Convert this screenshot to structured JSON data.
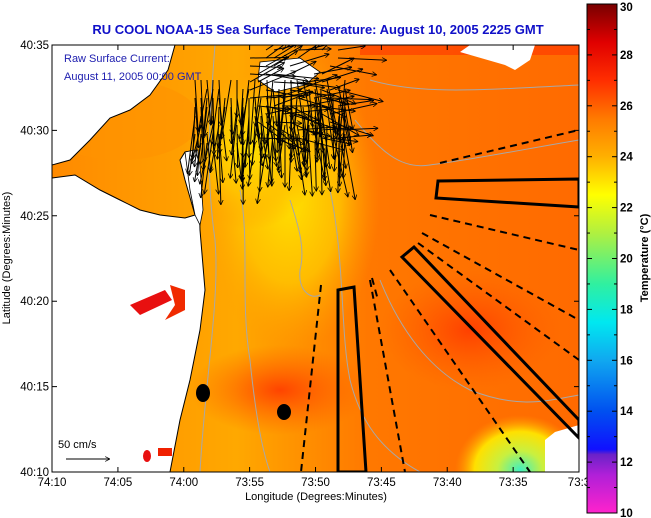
{
  "figure": {
    "title": "RU COOL  NOAA-15  Sea Surface Temperature:  August 10, 2005 2225 GMT",
    "annotation_line1": "Raw Surface Current:",
    "annotation_line2": "August 11, 2005 00:00 GMT",
    "scale_label": "50 cm/s",
    "colors": {
      "title": "#1010c8",
      "annotation": "#2020b0",
      "land": "#ffffff",
      "coastline": "#000000",
      "isobath": "#a0a0a0",
      "vectors": "#000000"
    }
  },
  "chart_data": {
    "type": "heatmap",
    "title": "RU COOL  NOAA-15  Sea Surface Temperature:  August 10, 2005 2225 GMT",
    "xlabel": "Longitude (Degrees:Minutes)",
    "ylabel": "Latitude (Degrees:Minutes)",
    "x_ticks": [
      "74:10",
      "74:05",
      "74:00",
      "73:55",
      "73:50",
      "73:45",
      "73:40",
      "73:35",
      "73:3"
    ],
    "x_tick_values": [
      -74.1667,
      -74.0833,
      -74.0,
      -73.9167,
      -73.8333,
      -73.75,
      -73.6667,
      -73.5833,
      -73.5
    ],
    "y_ticks": [
      "40:35",
      "40:30",
      "40:25",
      "40:20",
      "40:15",
      "40:10"
    ],
    "y_tick_values": [
      40.5833,
      40.5,
      40.4167,
      40.3333,
      40.25,
      40.1667
    ],
    "xlim": [
      -74.1667,
      -73.5
    ],
    "ylim": [
      40.1667,
      40.5833
    ],
    "colorbar": {
      "label": "Temperature (°C)",
      "range": [
        10,
        30
      ],
      "ticks": [
        "30",
        "28",
        "26",
        "24",
        "22",
        "20",
        "18",
        "16",
        "14",
        "12",
        "10"
      ],
      "tick_values": [
        30,
        28,
        26,
        24,
        22,
        20,
        18,
        16,
        14,
        12,
        10
      ],
      "stops": [
        {
          "value": 10,
          "color": "#ff22cc"
        },
        {
          "value": 11.5,
          "color": "#b020d8"
        },
        {
          "value": 12.3,
          "color": "#6a22c8"
        },
        {
          "value": 12.5,
          "color": "#1010ff"
        },
        {
          "value": 14,
          "color": "#0050f0"
        },
        {
          "value": 16,
          "color": "#10a8f0"
        },
        {
          "value": 17.5,
          "color": "#00e8f0"
        },
        {
          "value": 19,
          "color": "#30f0a0"
        },
        {
          "value": 21,
          "color": "#b0f040"
        },
        {
          "value": 22.5,
          "color": "#ffff00"
        },
        {
          "value": 24,
          "color": "#ffb000"
        },
        {
          "value": 25.5,
          "color": "#ff7a00"
        },
        {
          "value": 27,
          "color": "#ff2e00"
        },
        {
          "value": 28.5,
          "color": "#e00000"
        },
        {
          "value": 30,
          "color": "#780000"
        }
      ]
    },
    "sst_summary": {
      "dominant_range_c": [
        24.5,
        27.5
      ],
      "cool_tongue_c": 23,
      "coldest_patch_c": 19
    },
    "stations": [
      {
        "name": "station-1",
        "lon": -73.98,
        "lat": 40.245
      },
      {
        "name": "station-2",
        "lon": -73.925,
        "lat": 40.225
      }
    ],
    "sampling_boxes": 3,
    "dashed_transects": 8
  }
}
